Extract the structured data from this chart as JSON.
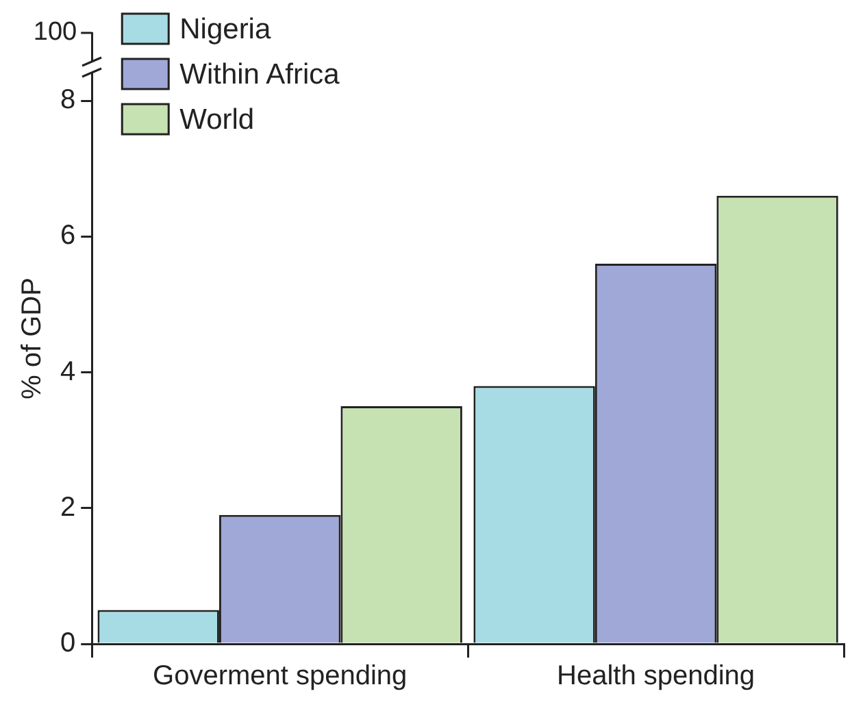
{
  "chart_data": {
    "type": "bar",
    "ylabel": "% of GDP",
    "categories": [
      "Goverment spending",
      "Health spending"
    ],
    "series": [
      {
        "name": "Nigeria",
        "color": "#a8dce4",
        "values": [
          0.5,
          3.8
        ]
      },
      {
        "name": "Within Africa",
        "color": "#a0a8d8",
        "values": [
          1.9,
          5.6
        ]
      },
      {
        "name": "World",
        "color": "#c6e1b2",
        "values": [
          3.5,
          6.6
        ]
      }
    ],
    "ylim": [
      0,
      9
    ],
    "yticks": [
      0,
      2,
      4,
      6,
      8
    ],
    "grid": false,
    "legend": "top left",
    "annotations": [
      "100"
    ]
  }
}
